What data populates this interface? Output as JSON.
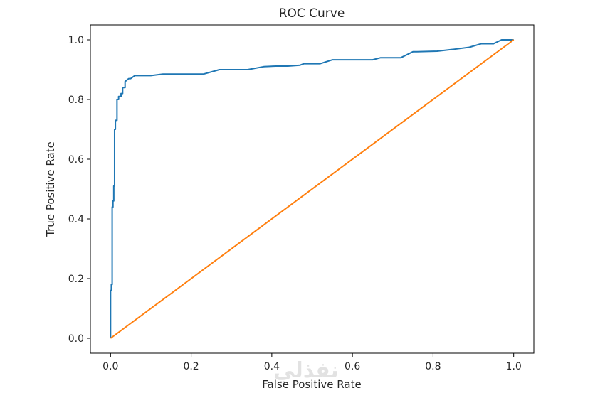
{
  "chart_data": {
    "type": "line",
    "title": "ROC Curve",
    "xlabel": "False Positive Rate",
    "ylabel": "True Positive Rate",
    "xlim": [
      -0.05,
      1.05
    ],
    "ylim": [
      -0.05,
      1.05
    ],
    "xticks": [
      0.0,
      0.2,
      0.4,
      0.6,
      0.8,
      1.0
    ],
    "yticks": [
      0.0,
      0.2,
      0.4,
      0.6,
      0.8,
      1.0
    ],
    "xtick_labels": [
      "0.0",
      "0.2",
      "0.4",
      "0.6",
      "0.8",
      "1.0"
    ],
    "ytick_labels": [
      "0.0",
      "0.2",
      "0.4",
      "0.6",
      "0.8",
      "1.0"
    ],
    "grid": false,
    "series": [
      {
        "color": "#1f77b4",
        "x": [
          0.0,
          0.0,
          0.002,
          0.002,
          0.004,
          0.004,
          0.006,
          0.006,
          0.008,
          0.008,
          0.01,
          0.01,
          0.012,
          0.012,
          0.016,
          0.016,
          0.02,
          0.02,
          0.026,
          0.026,
          0.03,
          0.03,
          0.036,
          0.036,
          0.045,
          0.05,
          0.06,
          0.1,
          0.13,
          0.23,
          0.27,
          0.34,
          0.38,
          0.41,
          0.44,
          0.47,
          0.48,
          0.52,
          0.55,
          0.65,
          0.67,
          0.72,
          0.75,
          0.76,
          0.81,
          0.85,
          0.89,
          0.92,
          0.95,
          0.97,
          1.0
        ],
        "y": [
          0.0,
          0.16,
          0.16,
          0.18,
          0.18,
          0.44,
          0.44,
          0.46,
          0.46,
          0.51,
          0.51,
          0.7,
          0.7,
          0.73,
          0.73,
          0.8,
          0.8,
          0.81,
          0.81,
          0.82,
          0.82,
          0.84,
          0.84,
          0.86,
          0.87,
          0.87,
          0.88,
          0.88,
          0.885,
          0.885,
          0.9,
          0.9,
          0.91,
          0.912,
          0.912,
          0.915,
          0.92,
          0.92,
          0.933,
          0.933,
          0.94,
          0.94,
          0.96,
          0.96,
          0.962,
          0.968,
          0.975,
          0.987,
          0.987,
          1.0,
          1.0
        ]
      },
      {
        "color": "#ff7f0e",
        "x": [
          0.0,
          1.0
        ],
        "y": [
          0.0,
          1.0
        ]
      }
    ]
  },
  "watermark": "نفذلي"
}
